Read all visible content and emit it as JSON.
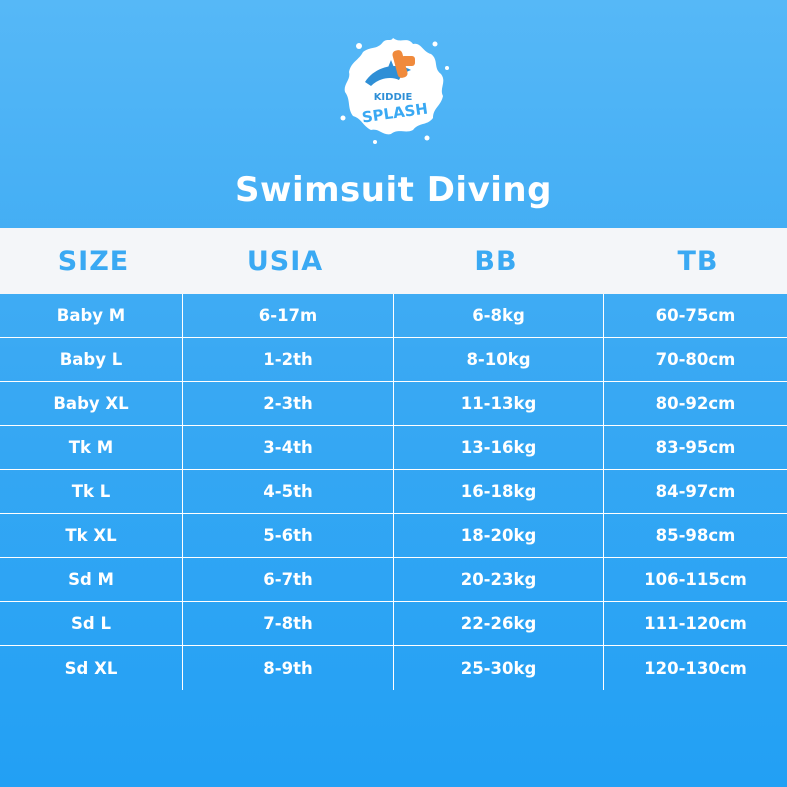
{
  "logo": {
    "line1": "KIDDIE",
    "line2": "SPLASH",
    "icon": "dolphin-splash-logo"
  },
  "title": "Swimsuit Diving",
  "table": {
    "headers": [
      "SIZE",
      "USIA",
      "BB",
      "TB"
    ],
    "rows": [
      [
        "Baby M",
        "6-17m",
        "6-8kg",
        "60-75cm"
      ],
      [
        "Baby L",
        "1-2th",
        "8-10kg",
        "70-80cm"
      ],
      [
        "Baby XL",
        "2-3th",
        "11-13kg",
        "80-92cm"
      ],
      [
        "Tk M",
        "3-4th",
        "13-16kg",
        "83-95cm"
      ],
      [
        "Tk L",
        "4-5th",
        "16-18kg",
        "84-97cm"
      ],
      [
        "Tk XL",
        "5-6th",
        "18-20kg",
        "85-98cm"
      ],
      [
        "Sd M",
        "6-7th",
        "20-23kg",
        "106-115cm"
      ],
      [
        "Sd L",
        "7-8th",
        "22-26kg",
        "111-120cm"
      ],
      [
        "Sd XL",
        "8-9th",
        "25-30kg",
        "120-130cm"
      ]
    ]
  },
  "colors": {
    "background": "#3aa9f3",
    "header_bg": "#f4f6f9",
    "header_text": "#3aa9f3",
    "dolphin": "#2f8fd6",
    "float": "#f08a3c"
  }
}
